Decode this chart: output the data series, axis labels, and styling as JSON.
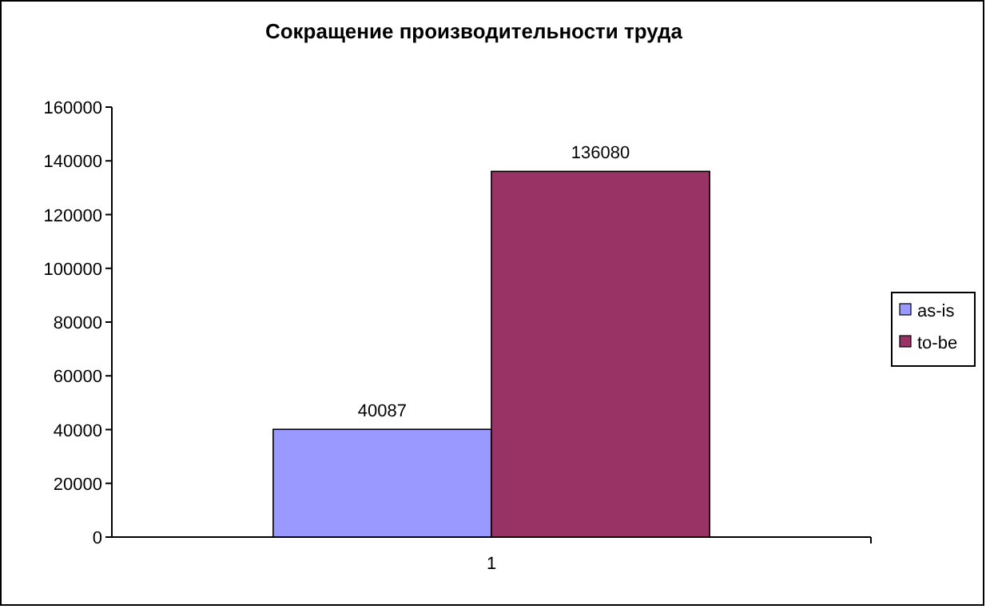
{
  "chart_data": {
    "type": "bar",
    "title": "Сокращение производительности труда",
    "categories": [
      "1"
    ],
    "series": [
      {
        "name": "as-is",
        "color": "#9999ff",
        "values": [
          40087
        ]
      },
      {
        "name": "to-be",
        "color": "#993366",
        "values": [
          136080
        ]
      }
    ],
    "ylim": [
      0,
      160000
    ],
    "yticks": [
      0,
      20000,
      40000,
      60000,
      80000,
      100000,
      120000,
      140000,
      160000
    ],
    "grid": false,
    "legend": "right",
    "data_labels": true
  }
}
